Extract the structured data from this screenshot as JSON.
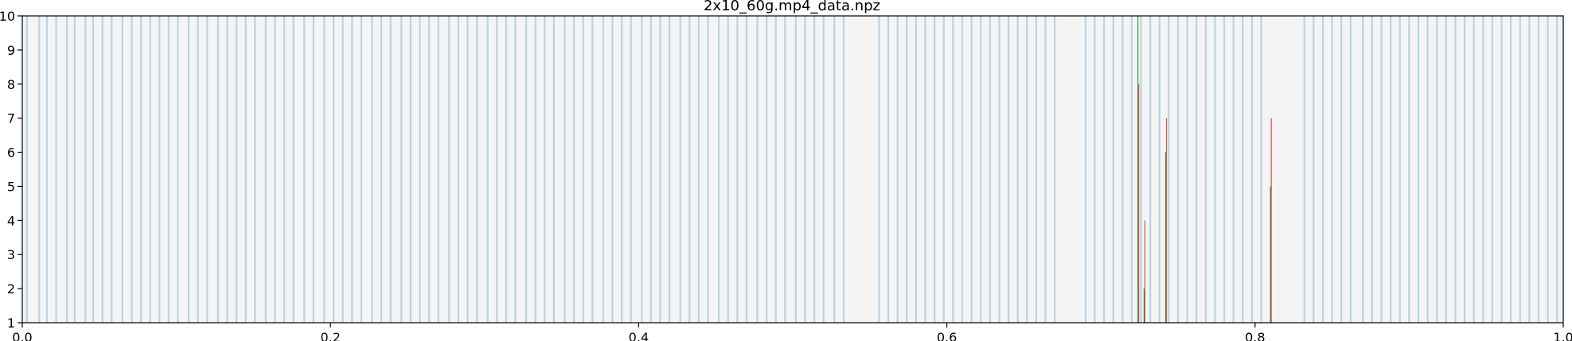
{
  "chart_data": {
    "type": "bar",
    "title": "2x10_60g.mp4_data.npz",
    "xlabel": "",
    "ylabel": "",
    "xlim": [
      0.0,
      1.0
    ],
    "ylim": [
      1,
      10
    ],
    "x_ticks": [
      "0.0",
      "0.2",
      "0.4",
      "0.6",
      "0.8",
      "1.0"
    ],
    "y_ticks": [
      "1",
      "2",
      "3",
      "4",
      "5",
      "6",
      "7",
      "8",
      "9",
      "10"
    ],
    "grid": false,
    "legend": "none",
    "colors": {
      "background": "#f4f4f4",
      "bands": "#b9d3e3",
      "red_spikes": "#d62728",
      "green_spikes": "#2ca02c"
    },
    "band_positions": [
      0.003,
      0.011,
      0.016,
      0.022,
      0.029,
      0.034,
      0.041,
      0.046,
      0.052,
      0.058,
      0.065,
      0.071,
      0.077,
      0.083,
      0.089,
      0.095,
      0.101,
      0.108,
      0.114,
      0.12,
      0.127,
      0.133,
      0.139,
      0.145,
      0.151,
      0.158,
      0.164,
      0.17,
      0.176,
      0.183,
      0.189,
      0.196,
      0.202,
      0.208,
      0.214,
      0.22,
      0.227,
      0.233,
      0.239,
      0.246,
      0.252,
      0.258,
      0.264,
      0.27,
      0.277,
      0.283,
      0.289,
      0.295,
      0.302,
      0.308,
      0.314,
      0.32,
      0.327,
      0.333,
      0.339,
      0.345,
      0.352,
      0.358,
      0.364,
      0.37,
      0.377,
      0.383,
      0.389,
      0.395,
      0.402,
      0.408,
      0.414,
      0.42,
      0.427,
      0.433,
      0.439,
      0.445,
      0.452,
      0.458,
      0.464,
      0.47,
      0.477,
      0.483,
      0.489,
      0.495,
      0.502,
      0.508,
      0.514,
      0.52,
      0.527,
      0.533,
      0.556,
      0.562,
      0.568,
      0.574,
      0.58,
      0.586,
      0.592,
      0.598,
      0.604,
      0.61,
      0.616,
      0.622,
      0.628,
      0.634,
      0.64,
      0.646,
      0.652,
      0.658,
      0.664,
      0.67,
      0.69,
      0.696,
      0.702,
      0.708,
      0.714,
      0.72,
      0.726,
      0.732,
      0.738,
      0.744,
      0.75,
      0.756,
      0.762,
      0.768,
      0.774,
      0.78,
      0.786,
      0.792,
      0.798,
      0.804,
      0.832,
      0.838,
      0.844,
      0.85,
      0.856,
      0.862,
      0.87,
      0.876,
      0.882,
      0.888,
      0.894,
      0.9,
      0.906,
      0.912,
      0.918,
      0.924,
      0.93,
      0.936,
      0.942,
      0.948,
      0.954,
      0.96,
      0.966,
      0.972,
      0.978,
      0.984,
      0.99,
      0.996
    ],
    "spikes": [
      {
        "x": 0.724,
        "red": 8,
        "green": 10
      },
      {
        "x": 0.728,
        "red": 4,
        "green": 2
      },
      {
        "x": 0.742,
        "red": 7,
        "green": 6
      },
      {
        "x": 0.81,
        "red": 7,
        "green": 5
      }
    ]
  }
}
